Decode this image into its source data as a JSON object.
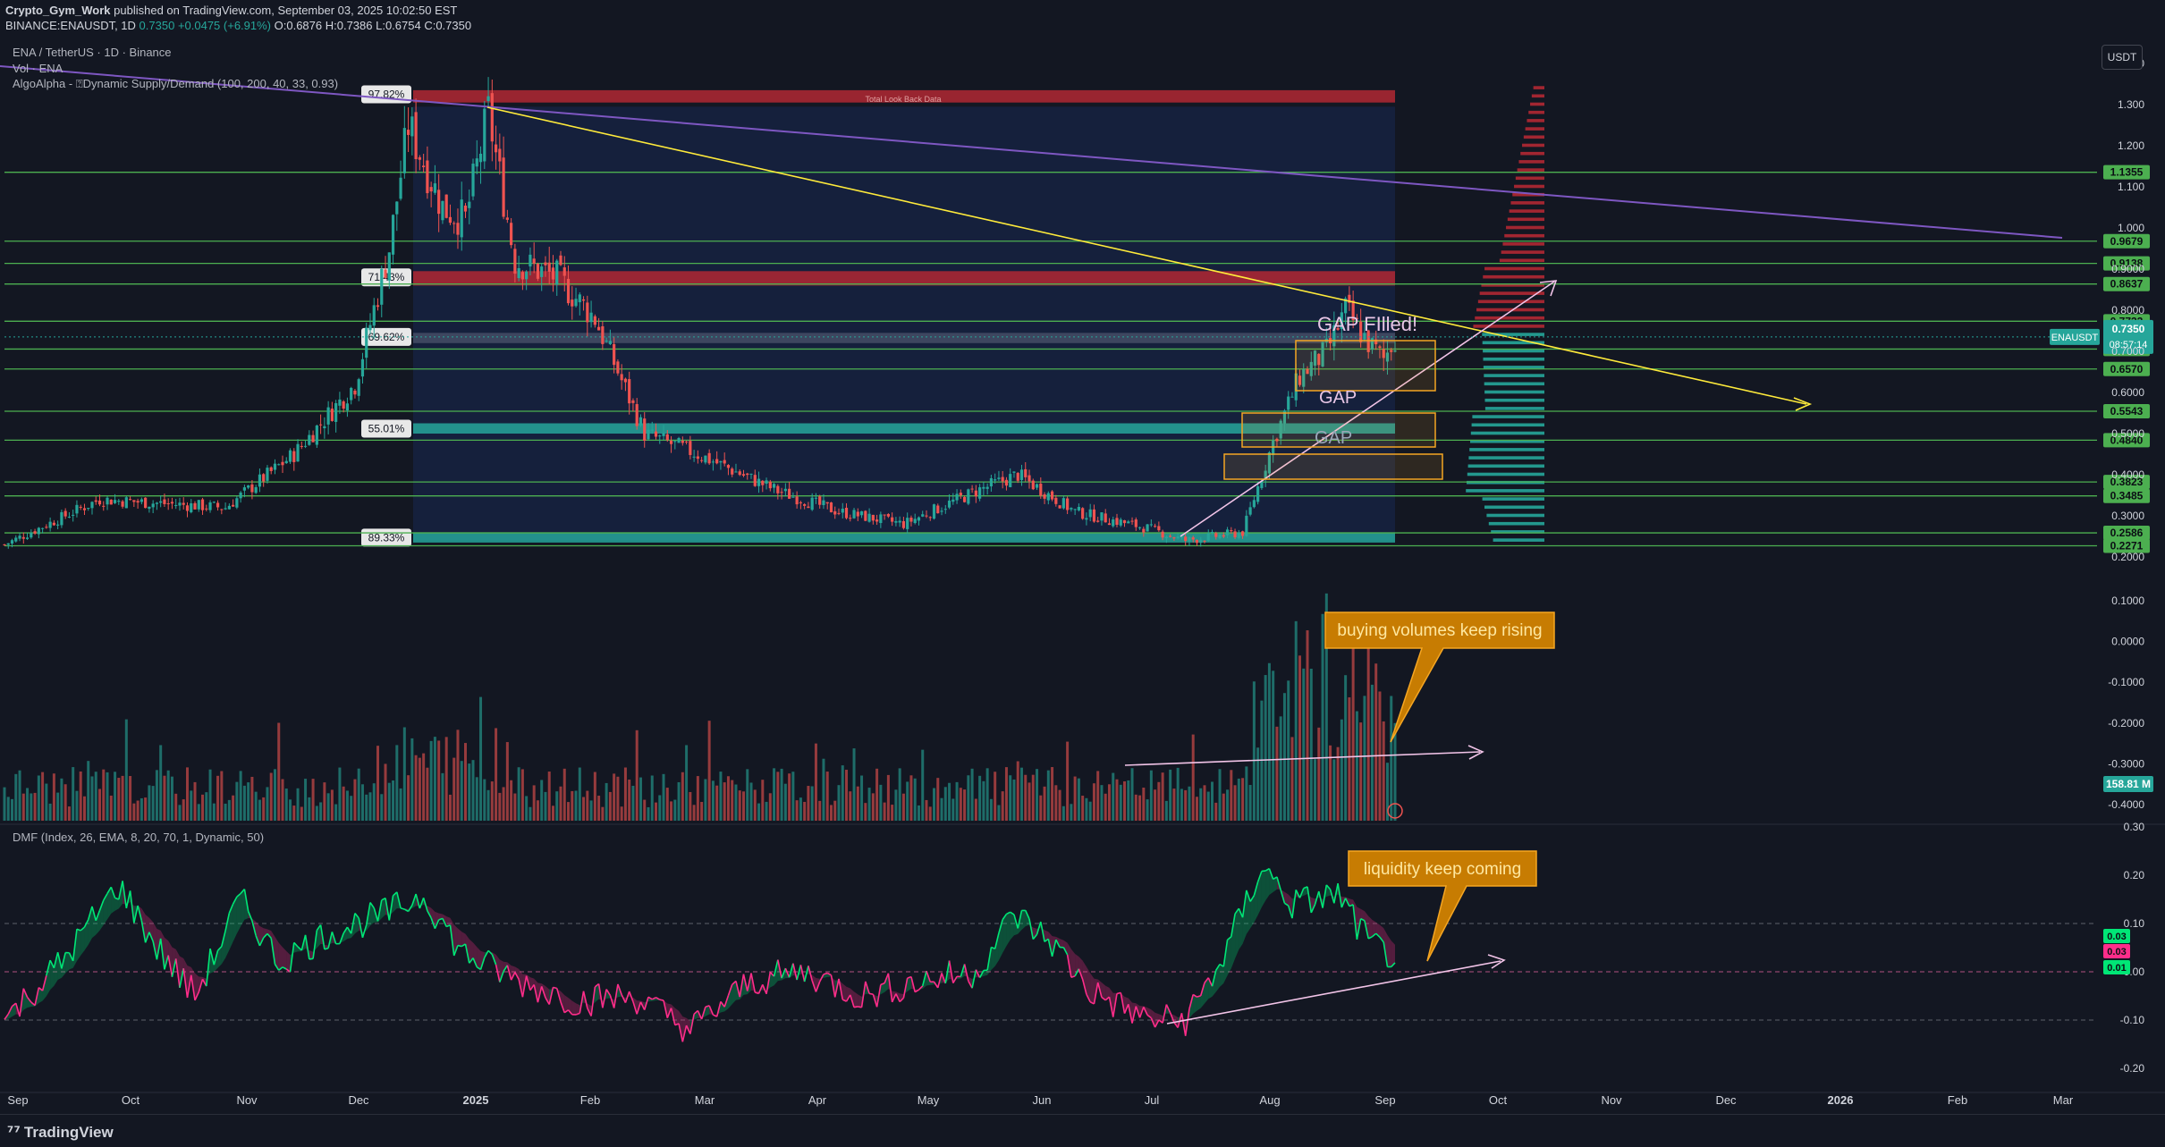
{
  "header": {
    "publisher": "Crypto_Gym_Work",
    "published_text": "published on TradingView.com, September 03, 2025 10:02:50 EST",
    "symbol_line_prefix": "BINANCE:ENAUSDT, 1D",
    "last": "0.7350",
    "change": "+0.0475 (+6.91%)",
    "ohlc": "O:0.6876 H:0.7386 L:0.6754 C:0.7350"
  },
  "legend": {
    "title": "ENA / TetherUS · 1D · Binance",
    "vol": "Vol · ENA",
    "algo": "AlgoAlpha - ⍰Dynamic Supply/Demand (100, 200, 40, 33, 0.93)",
    "dmf": "DMF (Index, 26, EMA, 8, 20, 70, 1, Dynamic, 50)"
  },
  "currency_button": "USDT",
  "footer": {
    "logo": "TradingView"
  },
  "colors": {
    "up": "#26a69a",
    "down": "#ef5350",
    "level": "#4caf50",
    "trend_yellow": "#ffeb3b",
    "purple_line": "#7e57c2",
    "supply_red": "#b22833",
    "demand_teal": "#26a69a",
    "gap_orange": "#f5a623",
    "dmf_green": "#00e676",
    "dmf_pink": "#ff2d8a"
  },
  "chart_data": [
    {
      "type": "candlestick",
      "title": "ENA / TetherUS · 1D · Binance",
      "x_axis_labels": [
        "Sep",
        "Oct",
        "Nov",
        "Dec",
        "2025",
        "Feb",
        "Mar",
        "Apr",
        "May",
        "Jun",
        "Jul",
        "Aug",
        "Sep",
        "Oct",
        "Nov",
        "Dec",
        "2026",
        "Feb",
        "Mar"
      ],
      "y_axis_ticks": [
        "1.400",
        "1.300",
        "1.200",
        "1.100",
        "1.000",
        "0.9000",
        "0.8000",
        "0.7000",
        "0.6000",
        "0.5000",
        "0.4000",
        "0.3000",
        "0.2000"
      ],
      "ylim": [
        0.2,
        1.42
      ],
      "approx_path": [
        {
          "x": "Sep",
          "y": 0.23
        },
        {
          "x": "Oct",
          "y": 0.35
        },
        {
          "x": "Nov",
          "y": 0.33
        },
        {
          "x": "Nov",
          "y": 0.45
        },
        {
          "x": "Dec",
          "y": 0.95
        },
        {
          "x": "Dec",
          "y": 1.28
        },
        {
          "x": "2025",
          "y": 1.05
        },
        {
          "x": "2025",
          "y": 1.29
        },
        {
          "x": "2025",
          "y": 0.9
        },
        {
          "x": "Feb",
          "y": 0.55
        },
        {
          "x": "Mar",
          "y": 0.4
        },
        {
          "x": "Apr",
          "y": 0.28
        },
        {
          "x": "May",
          "y": 0.38
        },
        {
          "x": "Jun",
          "y": 0.3
        },
        {
          "x": "Jul",
          "y": 0.25
        },
        {
          "x": "Aug",
          "y": 0.64
        },
        {
          "x": "Aug",
          "y": 0.82
        },
        {
          "x": "Sep",
          "y": 0.735
        }
      ],
      "horizontal_levels": [
        "1.1355",
        "0.9679",
        "0.9138",
        "0.8637",
        "0.7732",
        "0.7056",
        "0.6570",
        "0.5543",
        "0.4840",
        "0.3823",
        "0.3485",
        "0.2586",
        "0.2271"
      ],
      "price_label": {
        "symbol": "ENAUSDT",
        "value": "0.7350",
        "countdown": "08:57:14"
      },
      "zone_percent_labels": [
        "97.82%",
        "71.43%",
        "69.62%",
        "55.01%",
        "89.33%"
      ],
      "zone_caption": "Total Look Back Data",
      "annotations": [
        "GAP FIlled!",
        "GAP",
        "GAP"
      ]
    },
    {
      "type": "bar",
      "title": "Vol · ENA",
      "y_axis_ticks": [
        "0.1000",
        "0.0000",
        "-0.1000",
        "-0.2000",
        "-0.3000",
        "-0.4000"
      ],
      "last_volume_label": "158.81 M",
      "callout": "buying volumes keep rising"
    },
    {
      "type": "line",
      "title": "DMF (Index, 26, EMA, 8, 20, 70, 1, Dynamic, 50)",
      "ylim": [
        -0.22,
        0.32
      ],
      "y_axis_ticks": [
        "0.30",
        "0.20",
        "0.10",
        "0.00",
        "-0.10",
        "-0.20"
      ],
      "reference_lines": [
        0.1,
        0.0,
        -0.1
      ],
      "value_labels": [
        "0.03",
        "0.03",
        "0.01"
      ],
      "callout": "liquidity keep coming"
    }
  ]
}
